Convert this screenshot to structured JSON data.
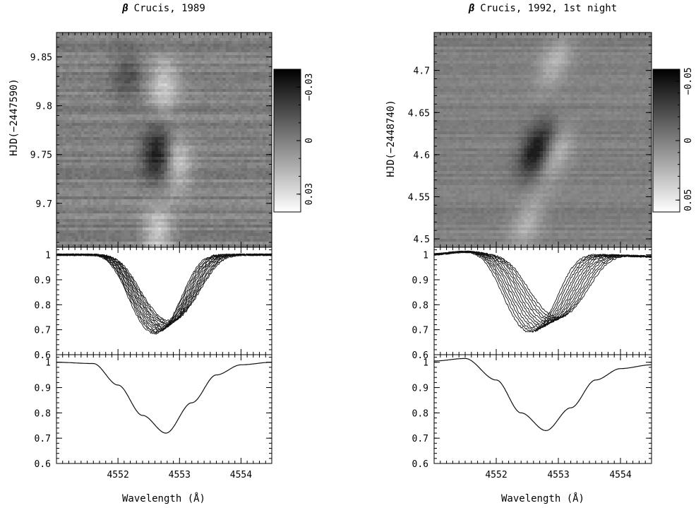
{
  "chart_data": [
    {
      "type": "heatmap",
      "title_symbol": "β",
      "title_text": "Crucis, 1989",
      "ylabel": "HJD(−2447590)",
      "xlim": [
        4551,
        4554.5
      ],
      "ylim": [
        9.655,
        9.875
      ],
      "yticks": [
        9.7,
        9.75,
        9.8,
        9.85
      ],
      "ytick_labels": [
        "9.7",
        "9.75",
        "9.8",
        "9.85"
      ],
      "colorbar": {
        "range": [
          -0.04,
          0.04
        ],
        "ticks": [
          -0.03,
          0,
          0.03
        ],
        "tick_labels": [
          "−0.03",
          "0",
          "0.03"
        ]
      },
      "features": [
        {
          "wavelength": 4552.65,
          "time": 9.75,
          "amplitude": -0.045
        },
        {
          "wavelength": 4552.95,
          "time": 9.74,
          "amplitude": 0.032
        },
        {
          "wavelength": 4552.15,
          "time": 9.83,
          "amplitude": -0.018
        },
        {
          "wavelength": 4552.75,
          "time": 9.82,
          "amplitude": 0.03
        },
        {
          "wavelength": 4552.65,
          "time": 9.67,
          "amplitude": 0.03
        }
      ]
    },
    {
      "type": "line",
      "series_count": 13,
      "ylim": [
        0.6,
        1.03
      ],
      "yticks": [
        0.6,
        0.7,
        0.8,
        0.9,
        1.0
      ],
      "ytick_labels": [
        "0.6",
        "0.7",
        "0.8",
        "0.9",
        "1"
      ],
      "xlim": [
        4551,
        4554.5
      ],
      "line_center_range": [
        4552.6,
        4552.85
      ],
      "line_min_range": [
        0.685,
        0.735
      ]
    },
    {
      "type": "line",
      "x": [
        4551.0,
        4551.6,
        4552.0,
        4552.4,
        4552.78,
        4553.2,
        4553.6,
        4554.0,
        4554.5
      ],
      "y": [
        1.0,
        0.995,
        0.91,
        0.79,
        0.72,
        0.84,
        0.95,
        0.99,
        1.0
      ],
      "ylim": [
        0.6,
        1.03
      ],
      "yticks": [
        0.6,
        0.7,
        0.8,
        0.9,
        1.0
      ],
      "ytick_labels": [
        "0.6",
        "0.7",
        "0.8",
        "0.9",
        "1"
      ],
      "xlim": [
        4551,
        4554.5
      ],
      "xticks": [
        4552,
        4553,
        4554
      ],
      "xtick_labels": [
        "4552",
        "4553",
        "4554"
      ],
      "xlabel": "Wavelength (Å)"
    },
    {
      "type": "heatmap",
      "title_symbol": "β",
      "title_text": "Crucis, 1992, 1st night",
      "ylabel": "HJD(−2448740)",
      "xlim": [
        4551,
        4554.5
      ],
      "ylim": [
        4.49,
        4.745
      ],
      "yticks": [
        4.5,
        4.55,
        4.6,
        4.65,
        4.7
      ],
      "ytick_labels": [
        "4.5",
        "4.55",
        "4.6",
        "4.65",
        "4.7"
      ],
      "colorbar": {
        "range": [
          -0.06,
          0.06
        ],
        "ticks": [
          -0.05,
          0,
          0.05
        ],
        "tick_labels": [
          "−0.05",
          "0",
          "0.05"
        ]
      },
      "features": [
        {
          "wavelength": 4552.65,
          "time": 4.605,
          "amplitude": -0.07
        },
        {
          "wavelength": 4552.95,
          "time": 4.6,
          "amplitude": 0.035
        },
        {
          "wavelength": 4552.95,
          "time": 4.71,
          "amplitude": 0.03
        },
        {
          "wavelength": 4552.5,
          "time": 4.52,
          "amplitude": 0.03
        }
      ]
    },
    {
      "type": "line",
      "series_count": 13,
      "ylim": [
        0.6,
        1.03
      ],
      "yticks": [
        0.6,
        0.7,
        0.8,
        0.9,
        1.0
      ],
      "ytick_labels": [
        "0.6",
        "0.7",
        "0.8",
        "0.9",
        "1"
      ],
      "xlim": [
        4551,
        4554.5
      ],
      "line_center_range": [
        4552.55,
        4553.0
      ],
      "line_min_range": [
        0.69,
        0.75
      ]
    },
    {
      "type": "line",
      "x": [
        4551.0,
        4551.5,
        4552.0,
        4552.4,
        4552.8,
        4553.2,
        4553.6,
        4554.0,
        4554.5
      ],
      "y": [
        1.005,
        1.015,
        0.93,
        0.8,
        0.73,
        0.82,
        0.93,
        0.975,
        0.99
      ],
      "ylim": [
        0.6,
        1.03
      ],
      "yticks": [
        0.6,
        0.7,
        0.8,
        0.9,
        1.0
      ],
      "ytick_labels": [
        "0.6",
        "0.7",
        "0.8",
        "0.9",
        "1"
      ],
      "xlim": [
        4551,
        4554.5
      ],
      "xticks": [
        4552,
        4553,
        4554
      ],
      "xtick_labels": [
        "4552",
        "4553",
        "4554"
      ],
      "xlabel": "Wavelength (Å)"
    }
  ]
}
